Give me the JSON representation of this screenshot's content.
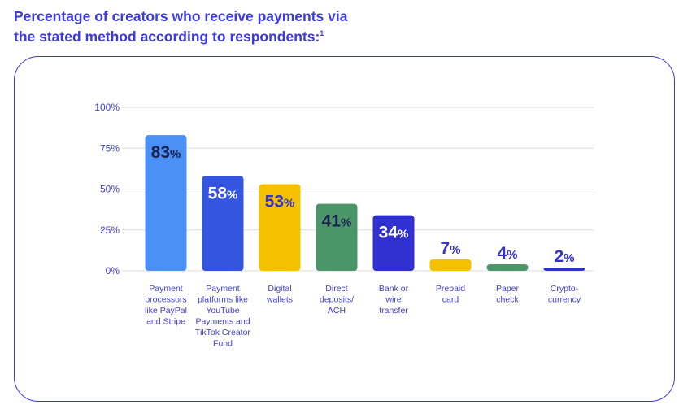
{
  "title": "Percentage of creators who receive payments via the stated method according to respondents:",
  "title_footnote": "1",
  "chart_data": {
    "type": "bar",
    "title": "Percentage of creators who receive payments via the stated method according to respondents:",
    "xlabel": "",
    "ylabel": "",
    "ylim": [
      0,
      100
    ],
    "yticks": [
      "0%",
      "25%",
      "50%",
      "75%",
      "100%"
    ],
    "grid": true,
    "categories": [
      [
        "Payment",
        "processors",
        "like PayPal",
        "and Stripe"
      ],
      [
        "Payment",
        "platforms like",
        "YouTube",
        "Payments and",
        "TikTok Creator",
        "Fund"
      ],
      [
        "Digital",
        "wallets"
      ],
      [
        "Direct",
        "deposits/",
        "ACH"
      ],
      [
        "Bank or",
        "wire",
        "transfer"
      ],
      [
        "Prepaid",
        "card"
      ],
      [
        "Paper",
        "check"
      ],
      [
        "Crypto-",
        "currency"
      ]
    ],
    "values": [
      83,
      58,
      53,
      41,
      34,
      7,
      4,
      2
    ],
    "bar_colors": [
      "#4a90f5",
      "#3355e0",
      "#f5c000",
      "#4a9668",
      "#3030d0",
      "#f5c000",
      "#4a9668",
      "#3030d0"
    ],
    "label_colors": [
      "#1a2350",
      "#ffffff",
      "#3333cc",
      "#1a2350",
      "#ffffff",
      "#3333cc",
      "#3333cc",
      "#3333cc"
    ]
  },
  "colors": {
    "accent": "#3a3ae0",
    "grid": "#dddddd"
  }
}
